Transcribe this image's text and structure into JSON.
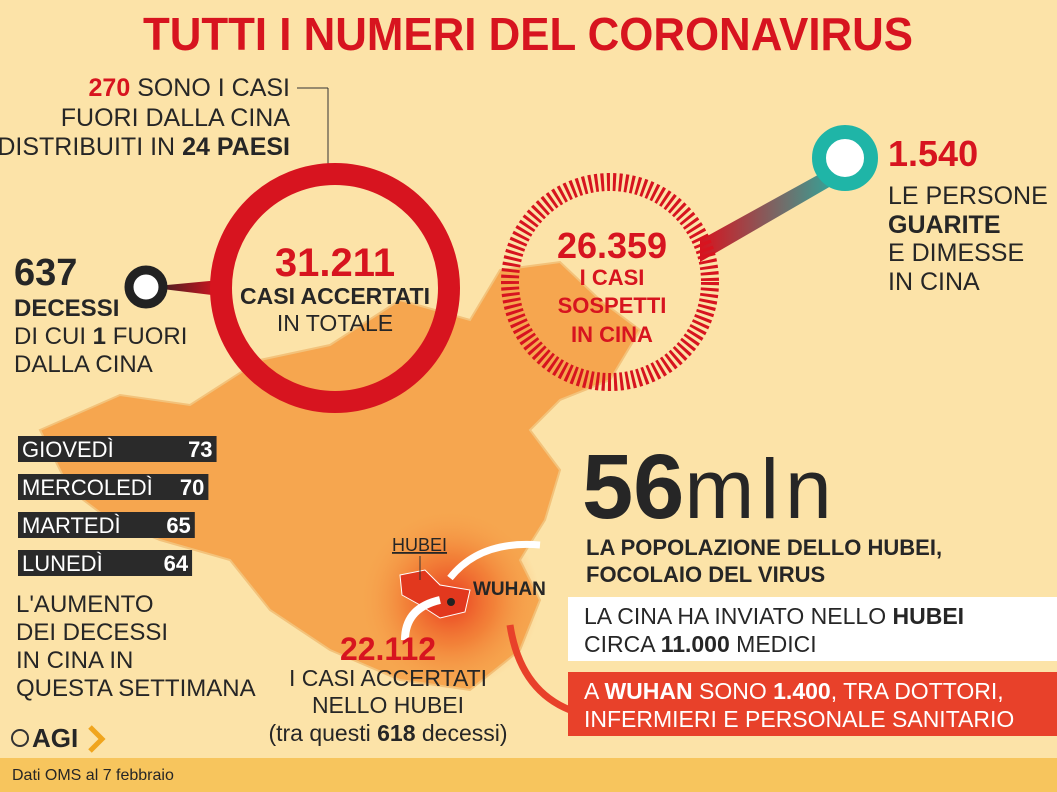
{
  "title": "TUTTI I NUMERI DEL CORONAVIRUS",
  "outside": {
    "number": "270",
    "line1": "SONO I CASI",
    "line2": "FUORI DALLA CINA",
    "line3a": "DISTRIBUITI IN",
    "line3b": "24 PAESI"
  },
  "deaths": {
    "number": "637",
    "label": "DECESSI",
    "line2a": "DI CUI",
    "line2b": "1",
    "line2c": "FUORI",
    "line3": "DALLA CINA"
  },
  "total": {
    "number": "31.211",
    "line1": "CASI ACCERTATI",
    "line2": "IN TOTALE"
  },
  "suspected": {
    "number": "26.359",
    "line1": "I CASI",
    "line2": "SOSPETTI",
    "line3": "IN CINA"
  },
  "recovered": {
    "number": "1.540",
    "line1": "LE PERSONE",
    "line2": "GUARITE",
    "line3": "E DIMESSE",
    "line4": "IN CINA"
  },
  "daily": {
    "rows": [
      {
        "day": "GIOVEDÌ",
        "value": 73
      },
      {
        "day": "MERCOLEDÌ",
        "value": 70
      },
      {
        "day": "MARTEDÌ",
        "value": 65
      },
      {
        "day": "LUNEDÌ",
        "value": 64
      }
    ],
    "caption": [
      "L'AUMENTO",
      "DEI DECESSI",
      "IN CINA IN",
      "QUESTA SETTIMANA"
    ]
  },
  "population": {
    "number": "56",
    "unit": "mln",
    "line1": "LA POPOLAZIONE DELLO HUBEI,",
    "line2": "FOCOLAIO DEL VIRUS"
  },
  "doctors": {
    "line1a": "LA CINA HA INVIATO NELLO",
    "line1b": "HUBEI",
    "line2a": "CIRCA",
    "line2b": "11.000",
    "line2c": "MEDICI"
  },
  "wuhanStaff": {
    "line1a": "A",
    "line1b": "WUHAN",
    "line1c": "SONO",
    "line1d": "1.400",
    "line1e": ", TRA DOTTORI,",
    "line2": "INFERMIERI E PERSONALE SANITARIO"
  },
  "hubei": {
    "label": "HUBEI",
    "city": "WUHAN",
    "number": "22.112",
    "line1": "I CASI ACCERTATI",
    "line2": "NELLO HUBEI",
    "line3a": "(tra questi",
    "line3b": "618",
    "line3c": "decessi)"
  },
  "footer": {
    "logo": "AGI",
    "source": "Dati OMS al 7 febbraio"
  }
}
